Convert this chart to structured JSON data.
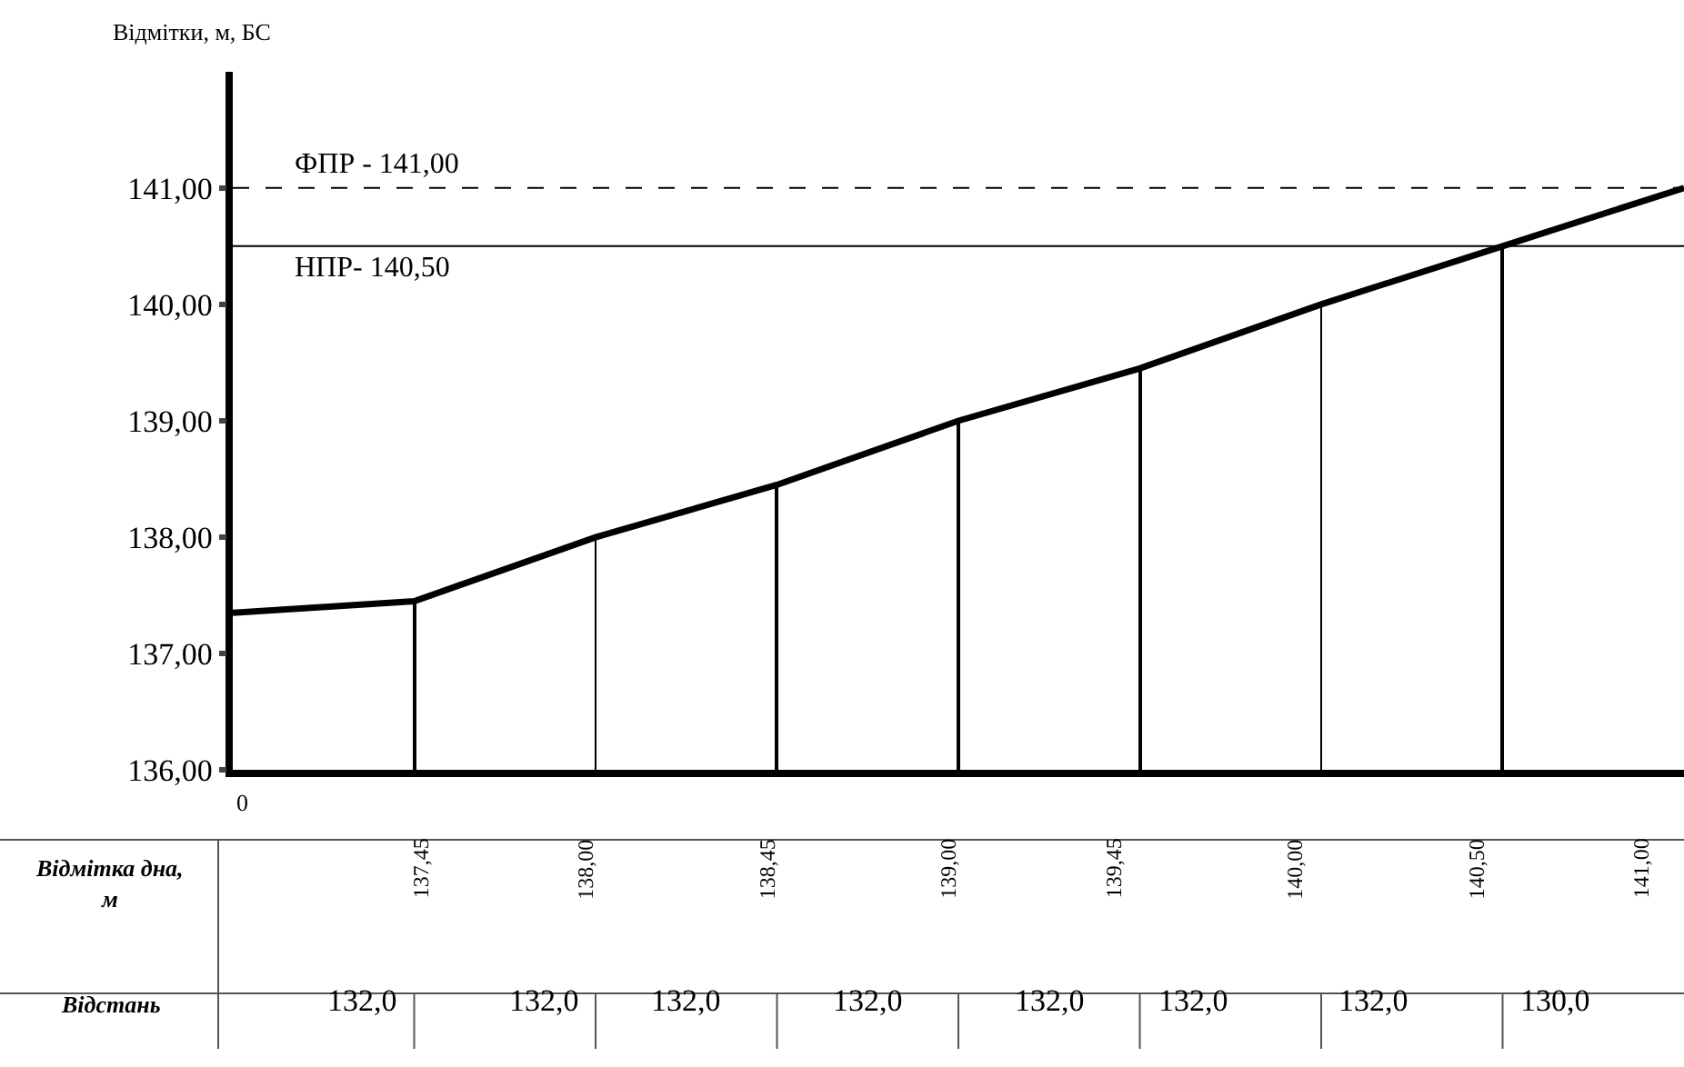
{
  "chart_data": {
    "type": "line",
    "ylabel": "Відмітки, м, БС",
    "categories": [
      null,
      null,
      null,
      null,
      null,
      null,
      null,
      null,
      null
    ],
    "series": [
      {
        "color": "#000000",
        "values": [
          137.35,
          137.45,
          138.0,
          138.45,
          139.0,
          139.45,
          140.0,
          140.5,
          141.0
        ],
        "value_labels": [
          null,
          "137,45",
          "138,00",
          "138,45",
          "139,00",
          "139,45",
          "140,00",
          "140,50",
          "141,00"
        ]
      },
      {
        "type": "bar",
        "color": "#000000",
        "values": [
          null,
          137.45,
          138.0,
          138.45,
          139.0,
          139.45,
          140.0,
          140.5,
          null
        ]
      }
    ],
    "ylim": [
      136,
      142
    ],
    "yticks": [
      {
        "value": 136,
        "label": "136,00"
      },
      {
        "value": 137,
        "label": "137,00"
      },
      {
        "value": 138,
        "label": "138,00"
      },
      {
        "value": 139,
        "label": "139,00"
      },
      {
        "value": 140,
        "label": "140,00"
      },
      {
        "value": 141,
        "label": "141,00"
      }
    ],
    "ref_lines": [
      {
        "axis": "y",
        "value": 141,
        "label": "ФПР - 141,00",
        "line_style": "dashed",
        "color": "#000000"
      },
      {
        "axis": "y",
        "value": 140.5,
        "label": "НПР- 140,50",
        "line_style": "solid",
        "color": "#000000"
      }
    ],
    "annotations": [
      "0",
      "Відмітка дна,\nм",
      "Відстань",
      "132,0",
      "132,0",
      "132,0",
      "132,0",
      "132,0",
      "132,0",
      "132,0",
      "130,0"
    ],
    "legend": false,
    "marker": "none",
    "line_style": "solid"
  }
}
